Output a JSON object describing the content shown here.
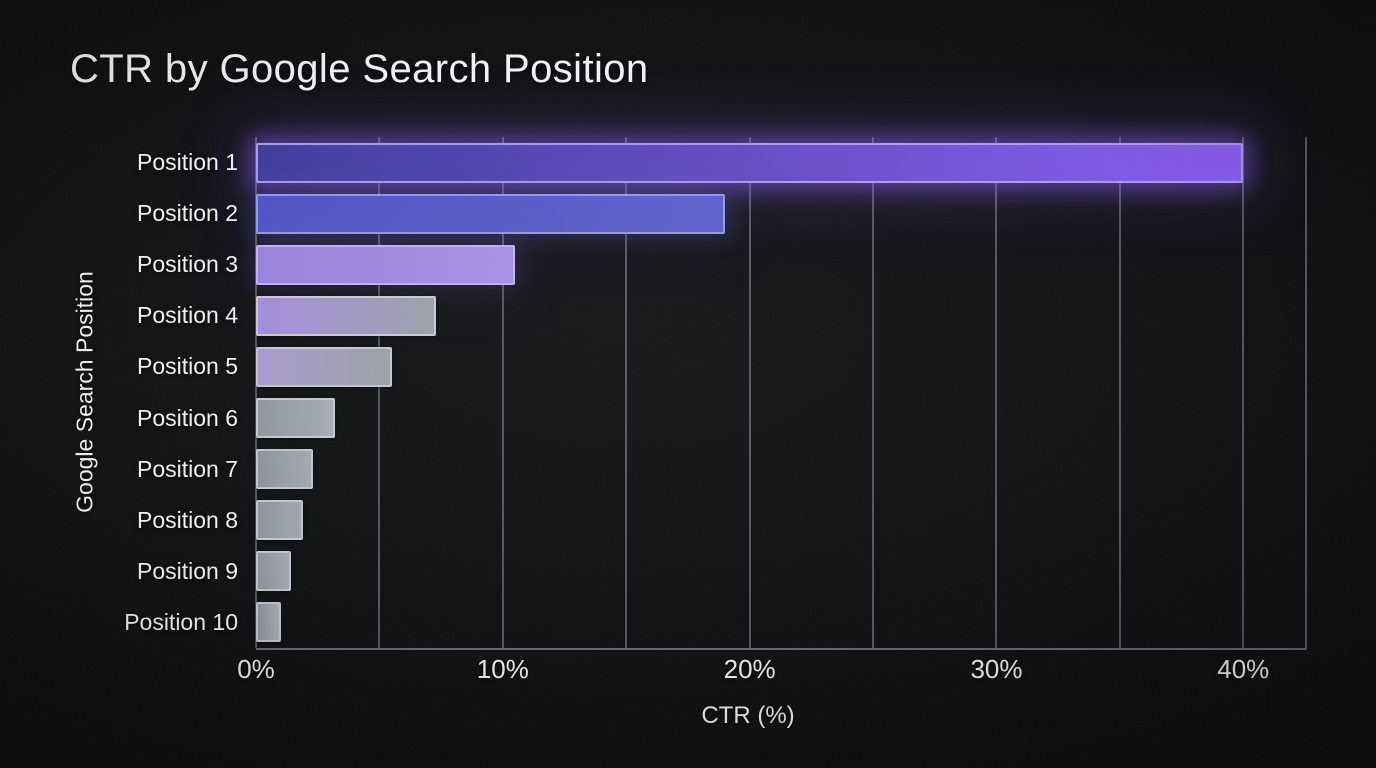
{
  "page": {
    "title": "CTR by Google Search Position"
  },
  "chart_data": {
    "type": "bar",
    "orientation": "horizontal",
    "title": "CTR by Google Search Position",
    "xlabel": "CTR (%)",
    "ylabel": "Google Search Position",
    "xlim": [
      0,
      42.5
    ],
    "grid": "vertical, every 5%, behind bars",
    "legend": "none",
    "categories": [
      "Position 1",
      "Position 2",
      "Position 3",
      "Position 4",
      "Position 5",
      "Position 6",
      "Position 7",
      "Position 8",
      "Position 9",
      "Position 10"
    ],
    "values": [
      40.0,
      19.0,
      10.5,
      7.3,
      5.5,
      3.2,
      2.3,
      1.9,
      1.4,
      1.0
    ],
    "xticks": [
      {
        "value": 0,
        "label": "0%"
      },
      {
        "value": 10,
        "label": "10%"
      },
      {
        "value": 20,
        "label": "20%"
      },
      {
        "value": 30,
        "label": "30%"
      },
      {
        "value": 40,
        "label": "40%"
      }
    ],
    "gridline_values": [
      0,
      5,
      10,
      15,
      20,
      25,
      30,
      35,
      40
    ],
    "bar_styles": [
      {
        "from": "#3e3c9a",
        "to": "#8b5cf0",
        "border": "#a89cf2",
        "glow": "rgba(139,92,246,0.5)"
      },
      {
        "from": "#4f53c3",
        "to": "#5d60ce",
        "border": "#9298e9",
        "glow": "rgba(110,105,235,0.16)"
      },
      {
        "from": "#9a80dc",
        "to": "#a78fe3",
        "border": "#c2b1ee",
        "glow": "rgba(150,120,230,0.12)"
      },
      {
        "from": "#a48cdf",
        "to": "#9aa0a8",
        "border": "#c8c9d1",
        "glow": null
      },
      {
        "from": "#a99bd0",
        "to": "#9aa0a7",
        "border": "#c5c7ce",
        "glow": null
      },
      {
        "from": "#8f959d",
        "to": "#a6acb4",
        "border": "#c4c8ce",
        "glow": null
      },
      {
        "from": "#8d939b",
        "to": "#a3a9b1",
        "border": "#c2c6cc",
        "glow": null
      },
      {
        "from": "#8d939b",
        "to": "#a2a8b0",
        "border": "#c2c6cc",
        "glow": null
      },
      {
        "from": "#8c929a",
        "to": "#a1a7af",
        "border": "#c1c5cb",
        "glow": null
      },
      {
        "from": "#8c929a",
        "to": "#a9aeb5",
        "border": "#c1c5cb",
        "glow": null
      }
    ],
    "colors": {
      "background": "#0c0e10",
      "gridline": "#53575b",
      "axis_line": "#63676b",
      "text": "#f2f3f5",
      "accent_purple": "#8b5cf6"
    }
  }
}
